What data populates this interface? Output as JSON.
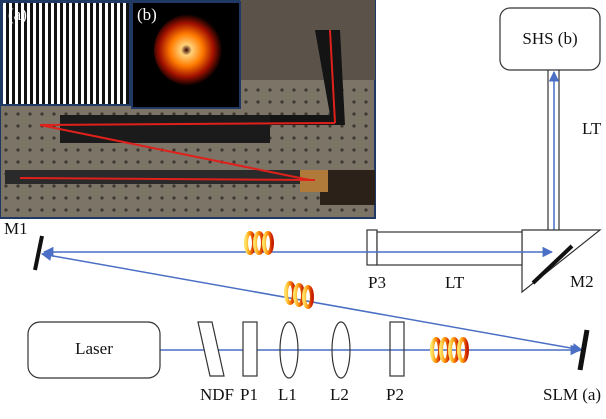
{
  "photo": {
    "inset_a_label": "(a)",
    "inset_b_label": "(b)"
  },
  "components": {
    "shs": "SHS (b)",
    "lt_vertical": "LT",
    "m1": "M1",
    "m2": "M2",
    "p3": "P3",
    "lt_horizontal": "LT",
    "laser": "Laser",
    "ndf": "NDF",
    "p1": "P1",
    "l1": "L1",
    "l2": "L2",
    "p2": "P2",
    "slm": "SLM (a)"
  }
}
